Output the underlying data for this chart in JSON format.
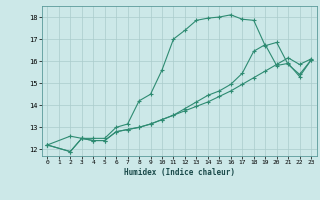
{
  "xlabel": "Humidex (Indice chaleur)",
  "background_color": "#cce8e8",
  "grid_color": "#aacccc",
  "line_color": "#2e8b72",
  "xlim": [
    -0.5,
    23.5
  ],
  "ylim": [
    11.7,
    18.5
  ],
  "yticks": [
    12,
    13,
    14,
    15,
    16,
    17,
    18
  ],
  "xticks": [
    0,
    1,
    2,
    3,
    4,
    5,
    6,
    7,
    8,
    9,
    10,
    11,
    12,
    13,
    14,
    15,
    16,
    17,
    18,
    19,
    20,
    21,
    22,
    23
  ],
  "line1_x": [
    0,
    2,
    3,
    4,
    5,
    6,
    7,
    8,
    9,
    10,
    11,
    12,
    13,
    14,
    15,
    16,
    17,
    18,
    19,
    20,
    21,
    22,
    23
  ],
  "line1_y": [
    12.2,
    12.6,
    12.5,
    12.5,
    12.5,
    13.0,
    13.15,
    14.2,
    14.5,
    15.6,
    17.0,
    17.4,
    17.85,
    17.95,
    18.0,
    18.1,
    17.9,
    17.85,
    16.7,
    16.85,
    15.85,
    15.4,
    16.05
  ],
  "line2_x": [
    0,
    2,
    3,
    4,
    5,
    6,
    7,
    8,
    9,
    10,
    11,
    12,
    13,
    14,
    15,
    16,
    17,
    18,
    19,
    20,
    21,
    22,
    23
  ],
  "line2_y": [
    12.2,
    11.9,
    12.5,
    12.4,
    12.4,
    12.8,
    12.9,
    13.0,
    13.15,
    13.35,
    13.55,
    13.75,
    13.95,
    14.15,
    14.4,
    14.65,
    14.95,
    15.25,
    15.55,
    15.85,
    16.15,
    15.85,
    16.1
  ],
  "line3_x": [
    0,
    2,
    3,
    4,
    5,
    6,
    7,
    8,
    9,
    10,
    11,
    12,
    13,
    14,
    15,
    16,
    17,
    18,
    19,
    20,
    21,
    22,
    23
  ],
  "line3_y": [
    12.2,
    11.9,
    12.5,
    12.4,
    12.4,
    12.8,
    12.9,
    13.0,
    13.15,
    13.35,
    13.55,
    13.85,
    14.15,
    14.45,
    14.65,
    14.95,
    15.45,
    16.45,
    16.75,
    15.8,
    15.9,
    15.3,
    16.05
  ]
}
